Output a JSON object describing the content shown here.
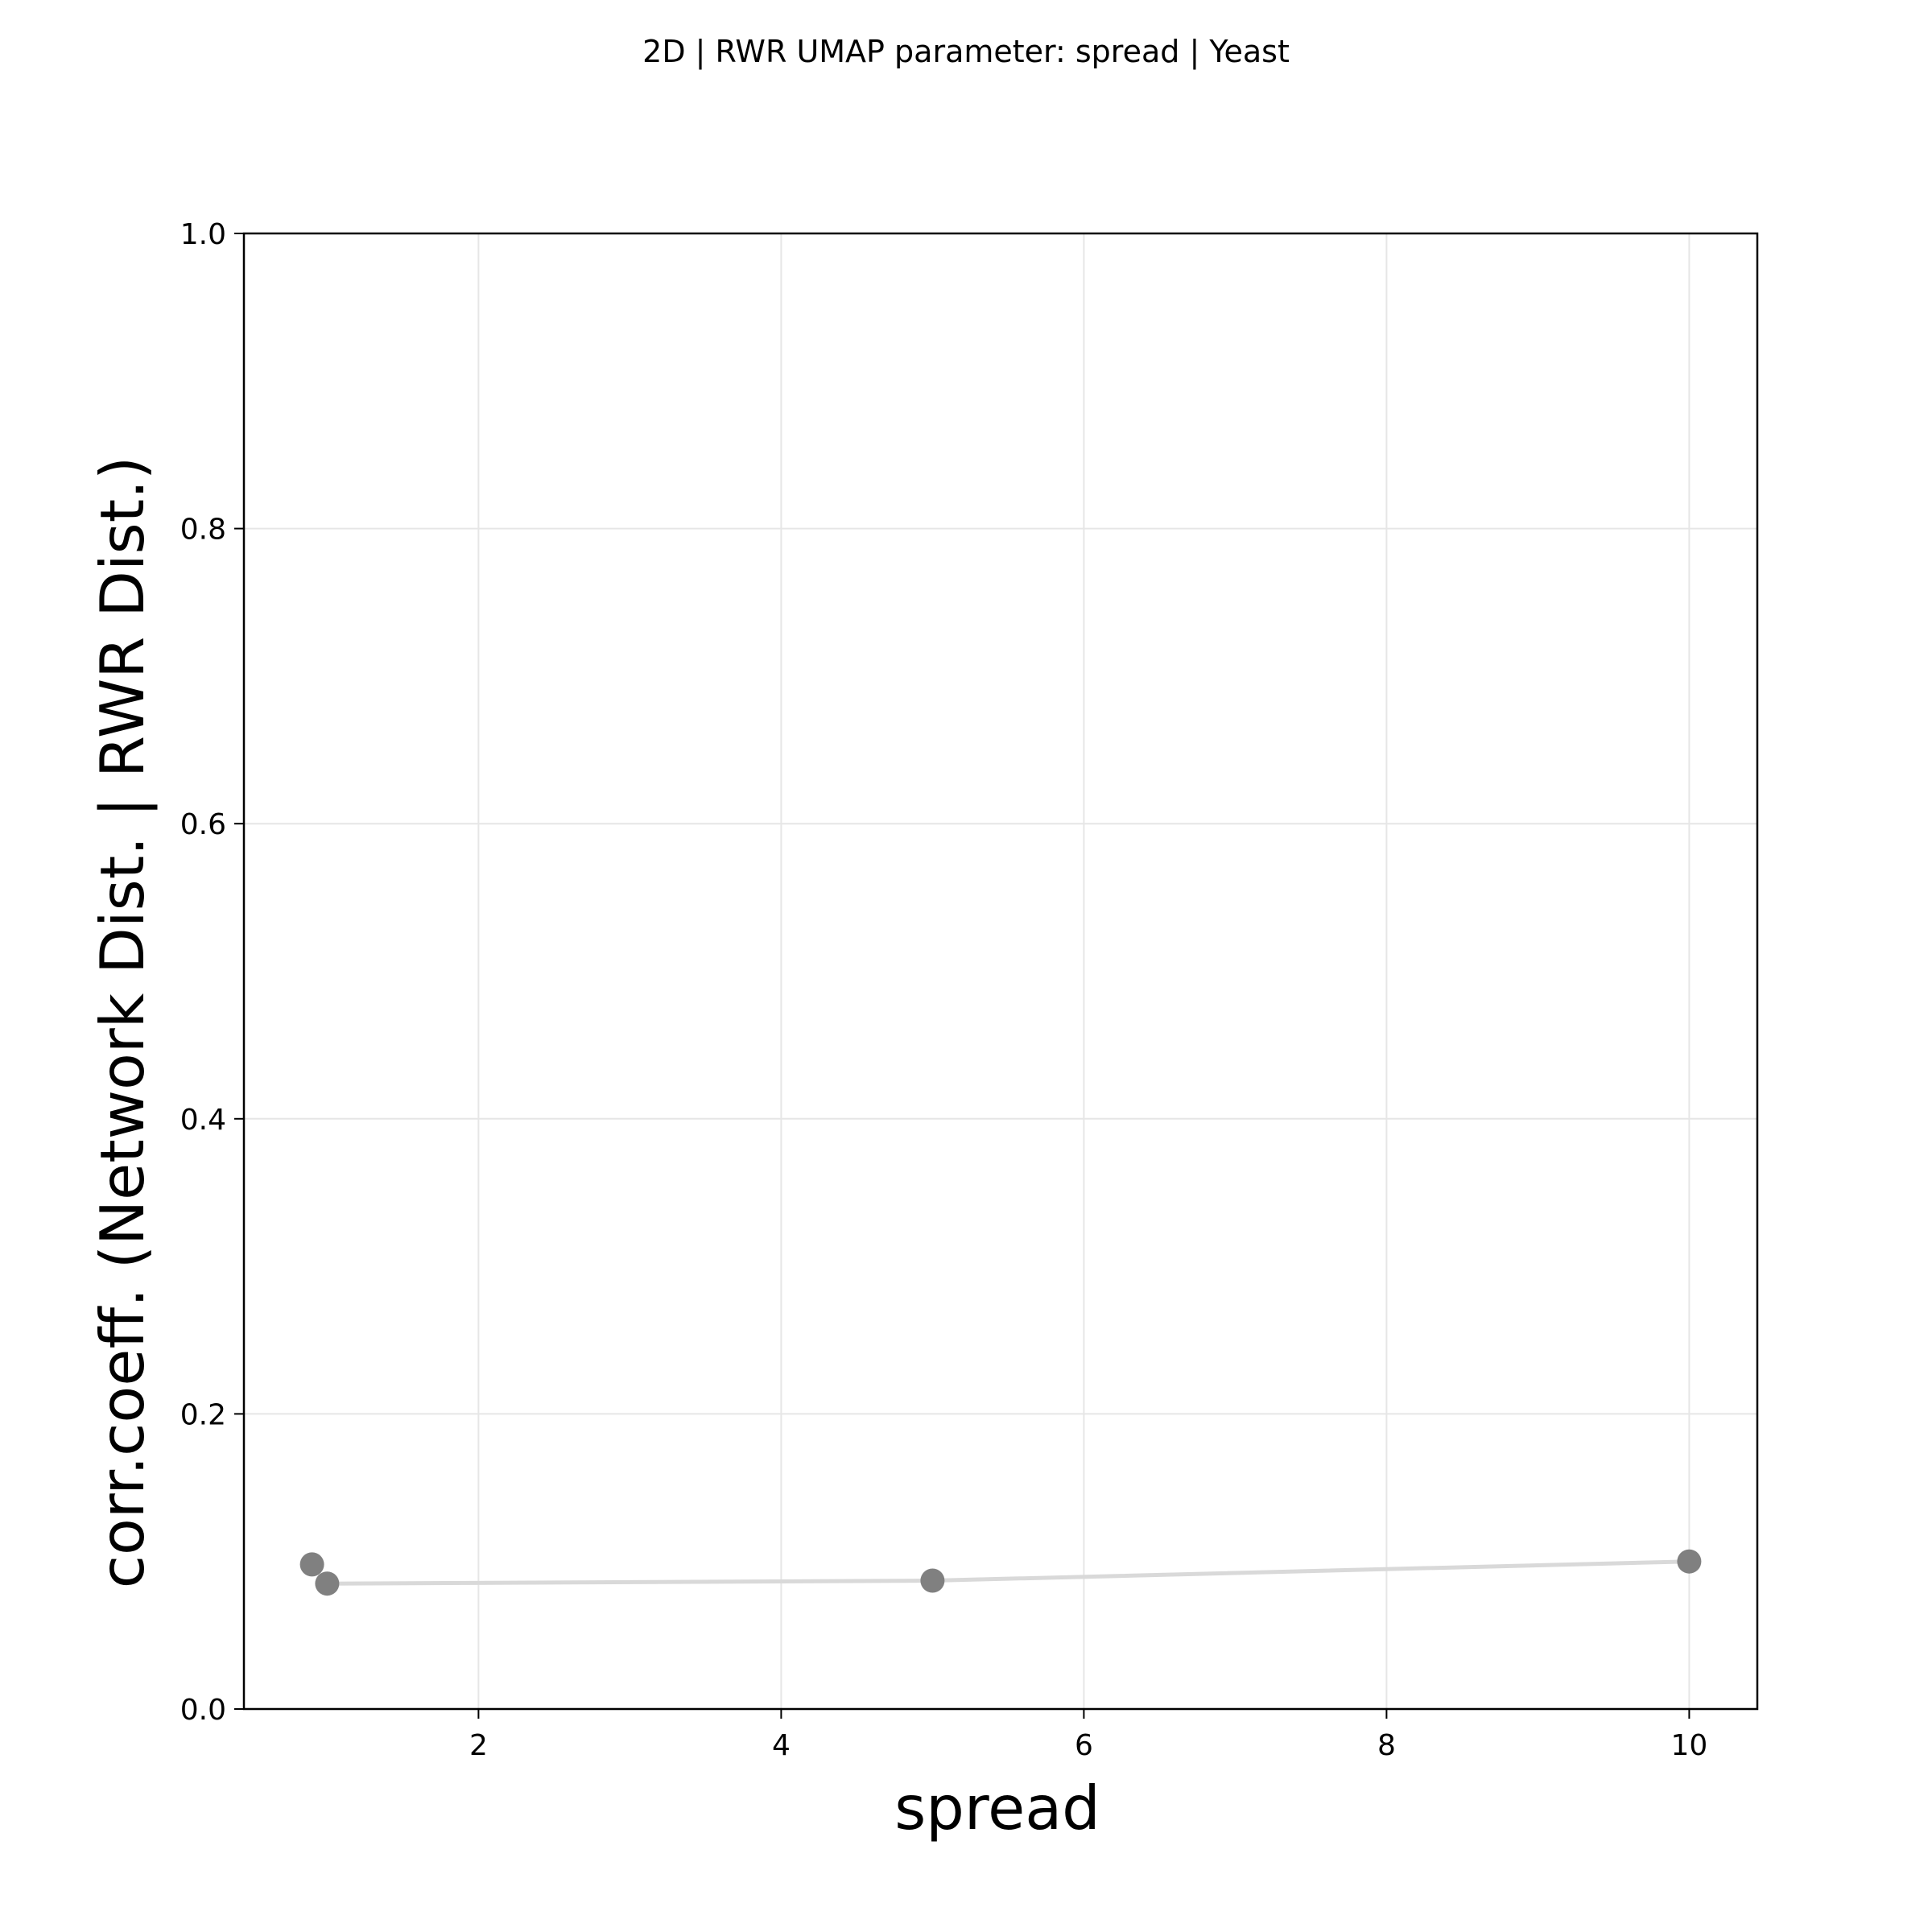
{
  "chart_data": {
    "type": "scatter",
    "title": "2D | RWR UMAP parameter: spread | Yeast",
    "xlabel": "spread",
    "ylabel": "corr.coeff. (Network Dist. | RWR Dist.)",
    "xlim": [
      0.45,
      10.45
    ],
    "ylim": [
      0.0,
      1.0
    ],
    "xticks": [
      "2",
      "4",
      "6",
      "8",
      "10"
    ],
    "yticks": [
      "0.0",
      "0.2",
      "0.4",
      "0.6",
      "0.8",
      "1.0"
    ],
    "grid": true,
    "series": [
      {
        "x": [
          1.0,
          5.0,
          10.0
        ],
        "y": [
          0.085,
          0.087,
          0.1
        ],
        "style": "line",
        "color": "#d9d9d9"
      },
      {
        "x": [
          0.9,
          1.0,
          5.0,
          10.0
        ],
        "y": [
          0.098,
          0.085,
          0.087,
          0.1
        ],
        "style": "points",
        "color": "#808080"
      }
    ],
    "grid_color": "#e6e6e6"
  }
}
